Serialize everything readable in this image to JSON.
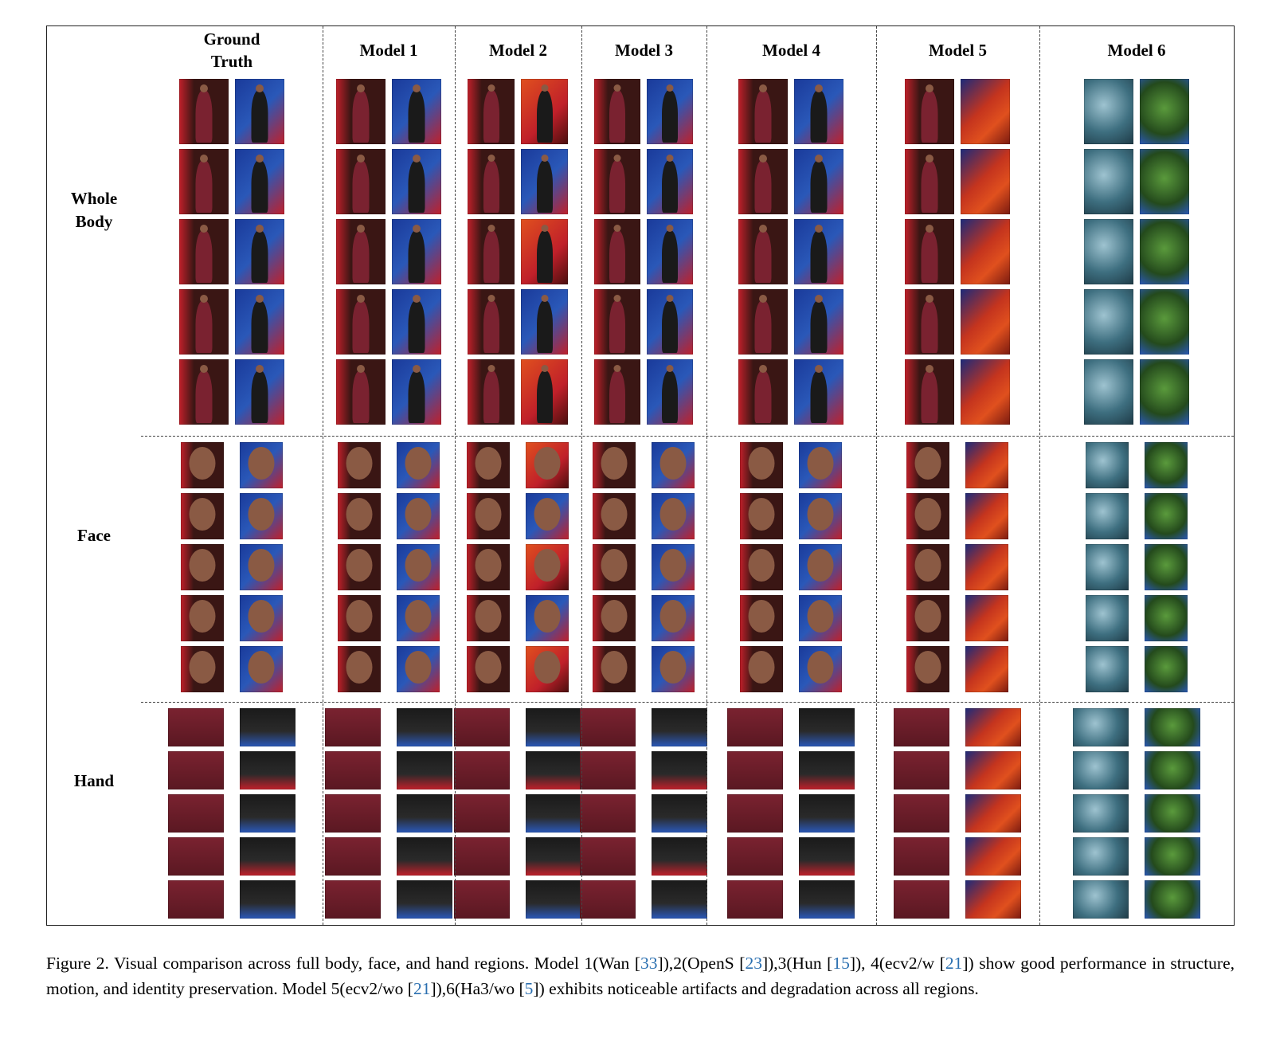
{
  "columns": [
    {
      "label_line1": "Ground",
      "label_line2": "Truth"
    },
    {
      "label_line1": "Model 1",
      "label_line2": ""
    },
    {
      "label_line1": "Model 2",
      "label_line2": ""
    },
    {
      "label_line1": "Model 3",
      "label_line2": ""
    },
    {
      "label_line1": "Model 4",
      "label_line2": ""
    },
    {
      "label_line1": "Model 5",
      "label_line2": ""
    },
    {
      "label_line1": "Model 6",
      "label_line2": ""
    }
  ],
  "rows": [
    {
      "label_line1": "Whole",
      "label_line2": "Body"
    },
    {
      "label_line1": "Face",
      "label_line2": ""
    },
    {
      "label_line1": "Hand",
      "label_line2": ""
    }
  ],
  "caption": {
    "part1": "Figure 2. Visual comparison across full body, face, and hand regions. Model 1(Wan [",
    "ref1": "33",
    "part2": "]),2(OpenS [",
    "ref2": "23",
    "part3": "]),3(Hun [",
    "ref3": "15",
    "part4": "]), 4(ecv2/w [",
    "ref4": "21",
    "part5": "]) show good performance in structure, motion, and identity preservation. Model 5(ecv2/wo [",
    "ref5": "21",
    "part6": "]),6(Ha3/wo [",
    "ref6": "5",
    "part7": "]) exhibits noticeable artifacts and degradation across all regions."
  },
  "colors": {
    "stage_red": "#c0202a",
    "stage_blue": "#2a58b8",
    "dress_maroon": "#7a2230",
    "outfit_black": "#1a1a1a",
    "skin": "#8a5a44",
    "noise_teal": "#4a7f8a",
    "noise_green": "#3c6a2c",
    "ref_link": "#2a6fb0"
  }
}
